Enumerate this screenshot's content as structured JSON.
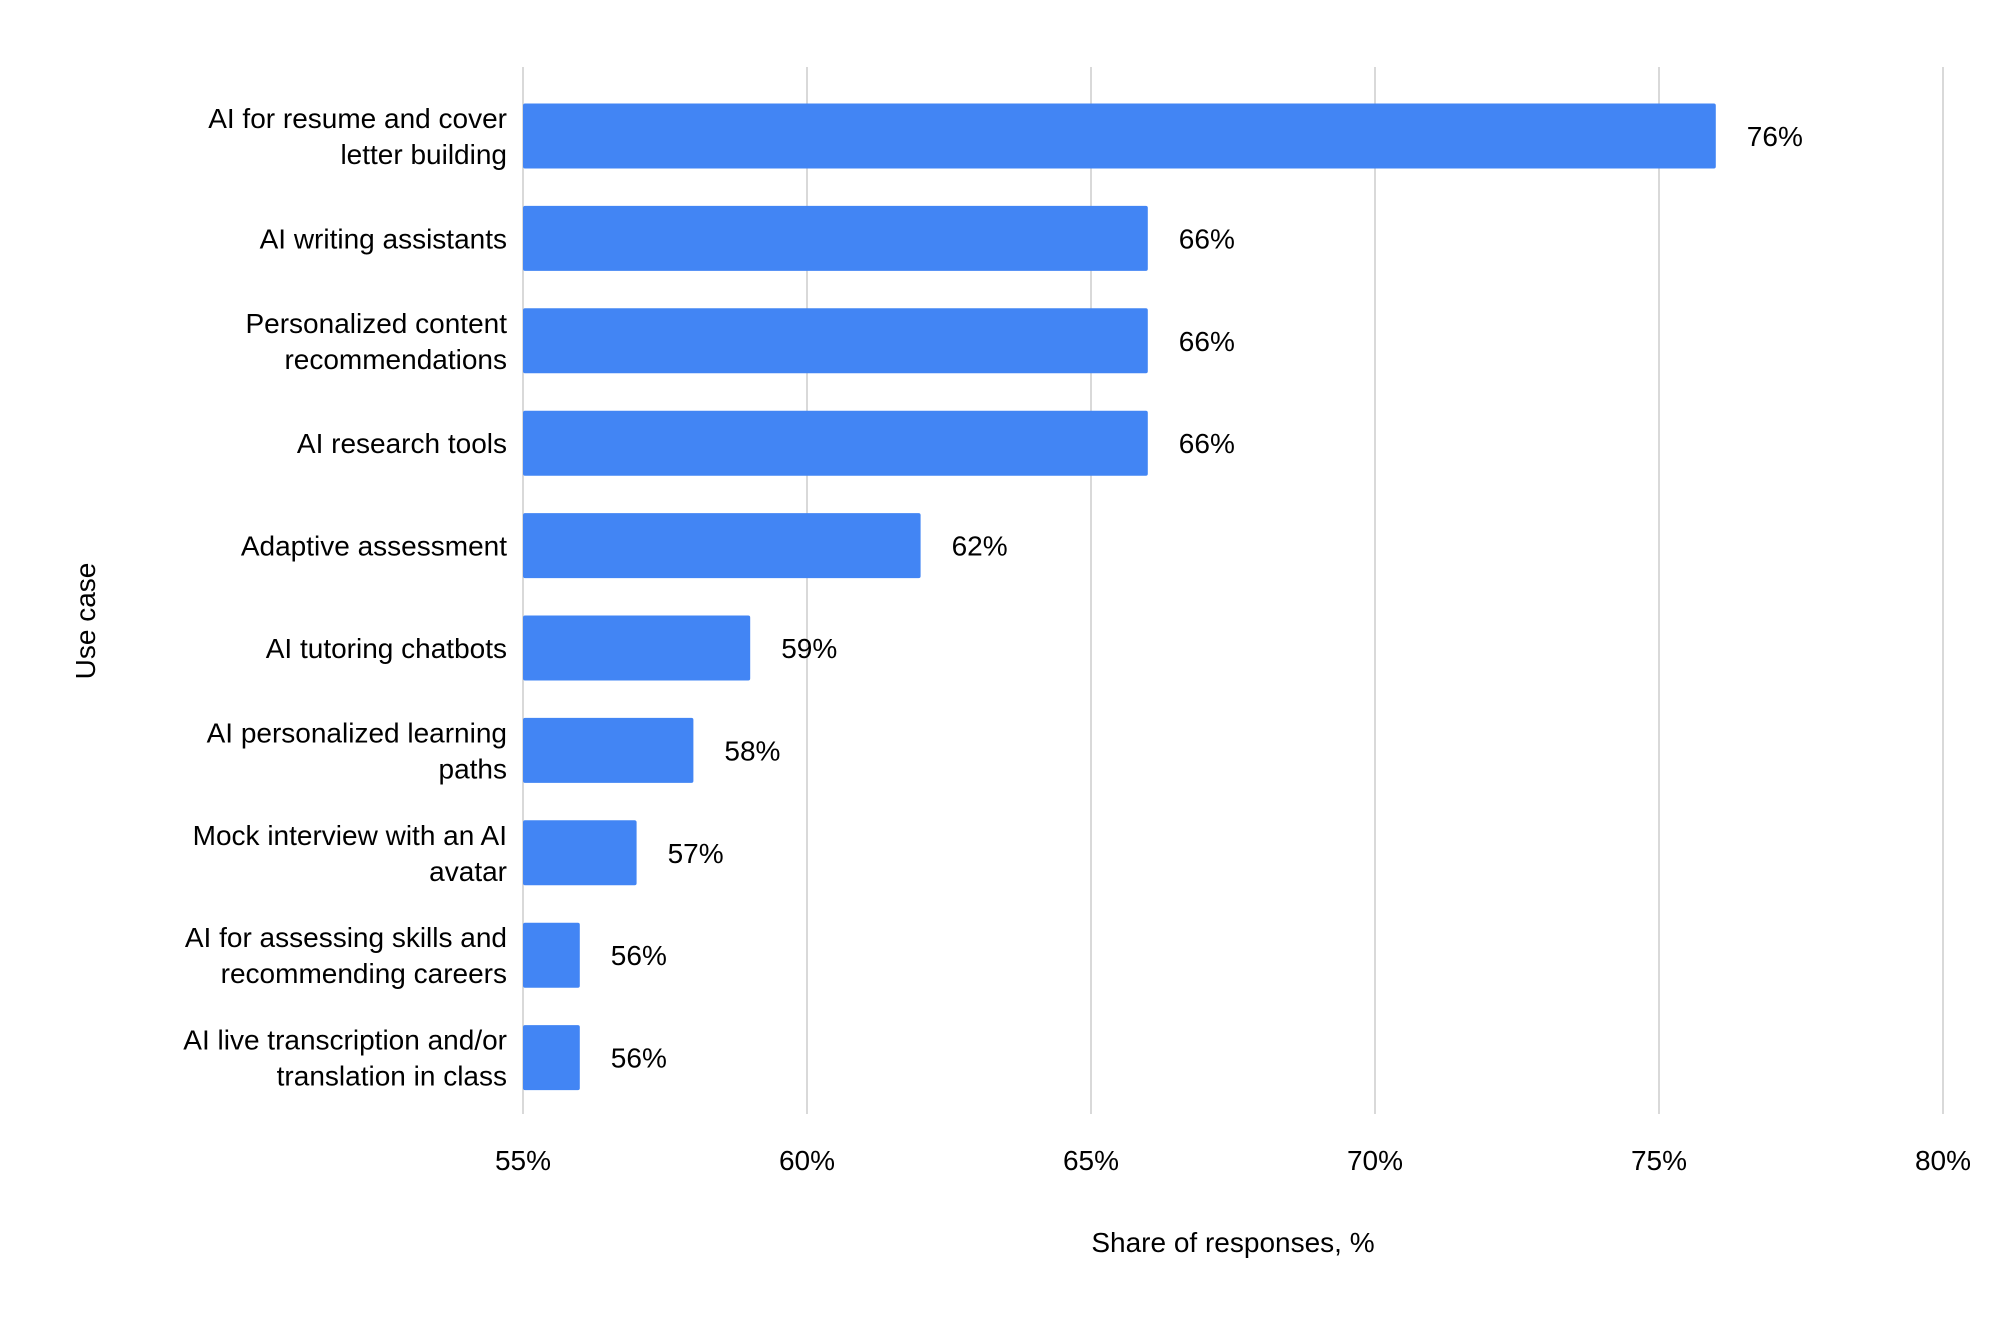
{
  "chart_data": {
    "type": "bar",
    "orientation": "horizontal",
    "title": "",
    "xlabel": "Share of responses, %",
    "ylabel": "Use case",
    "xlim": [
      55,
      80
    ],
    "xticks": [
      "55%",
      "60%",
      "65%",
      "70%",
      "75%",
      "80%"
    ],
    "xtick_values": [
      55,
      60,
      65,
      70,
      75,
      80
    ],
    "grid": true,
    "bar_color": "#4285f4",
    "categories": [
      [
        "AI for resume and cover",
        "letter building"
      ],
      [
        "AI writing assistants"
      ],
      [
        "Personalized content",
        "recommendations"
      ],
      [
        "AI research tools"
      ],
      [
        "Adaptive assessment"
      ],
      [
        "AI tutoring chatbots"
      ],
      [
        "AI personalized learning",
        "paths"
      ],
      [
        "Mock interview with an AI",
        "avatar"
      ],
      [
        "AI for assessing skills and",
        "recommending careers"
      ],
      [
        "AI live transcription and/or",
        "translation in class"
      ]
    ],
    "values": [
      76,
      66,
      66,
      66,
      62,
      59,
      58,
      57,
      56,
      56
    ],
    "data_labels": [
      "76%",
      "66%",
      "66%",
      "66%",
      "62%",
      "59%",
      "58%",
      "57%",
      "56%",
      "56%"
    ]
  }
}
